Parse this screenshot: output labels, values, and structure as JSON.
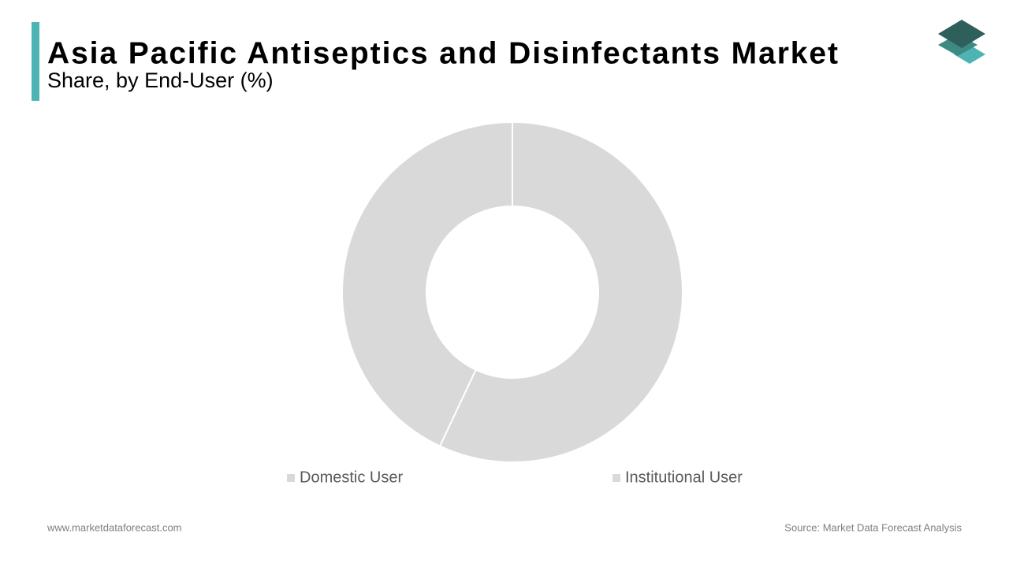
{
  "chart_data": {
    "type": "donut",
    "title": "Asia Pacific Antiseptics and Disinfectants Market",
    "subtitle": "Share, by End-User (%)",
    "categories": [
      "Domestic User",
      "Institutional User"
    ],
    "values": [
      57,
      43
    ],
    "colors": [
      "#d9d9d9",
      "#d9d9d9"
    ]
  },
  "footer": {
    "website": "www.marketdataforecast.com",
    "source": "Source: Market Data Forecast Analysis"
  }
}
